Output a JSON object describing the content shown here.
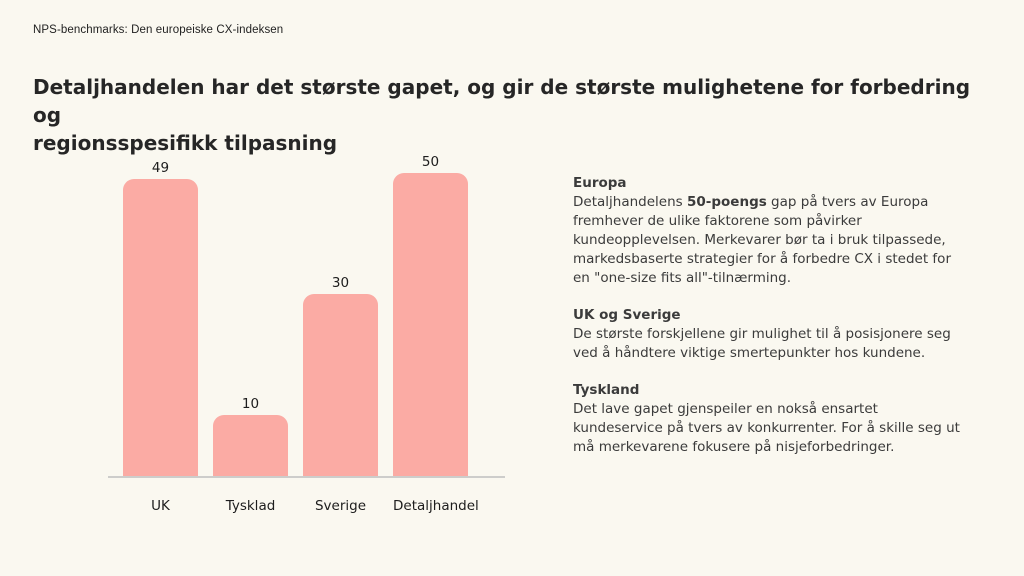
{
  "page": {
    "eyebrow": "NPS-benchmarks: Den europeiske CX-indeksen",
    "title_lines": [
      "Detaljhandelen har det største gapet, og gir de største mulighetene for forbedring og",
      "regionsspesifikk tilpasning"
    ]
  },
  "chart_data": {
    "type": "bar",
    "categories": [
      "UK",
      "Tysklad",
      "Sverige",
      "Detaljhandel"
    ],
    "values": [
      49,
      10,
      30,
      50
    ],
    "data_labels": [
      49,
      10,
      30,
      50
    ],
    "title": "",
    "xlabel": "",
    "ylabel": "",
    "ylim": [
      0,
      55
    ],
    "grid": false,
    "legend": false,
    "bar_color": "#fbaba4",
    "axis_line_color": "#cdcdcb"
  },
  "insights": [
    {
      "heading": "Europa",
      "body_prefix": "Detaljhandelens ",
      "body_bold": "50-poengs",
      "body_suffix": " gap på tvers av Europa fremhever de ulike faktorene som påvirker kundeopplevelsen. Merkevarer bør ta i bruk tilpassede, markedsbaserte strategier for å forbedre CX i stedet for en \"one-size fits all\"-tilnærming."
    },
    {
      "heading": "UK og Sverige",
      "body": "De største forskjellene gir mulighet til å posisjonere seg ved å håndtere viktige smertepunkter hos kundene."
    },
    {
      "heading": "Tyskland",
      "body": "Det lave gapet gjenspeiler en nokså ensartet kundeservice på tvers av konkurrenter. For å skille seg ut må merkevarene fokusere på nisjeforbedringer."
    }
  ],
  "colors": {
    "background": "#faf8f0",
    "bar": "#fbaba4",
    "title_text": "#262626",
    "body_text": "#3b3b3b",
    "axis_line": "#cdcdcb"
  }
}
